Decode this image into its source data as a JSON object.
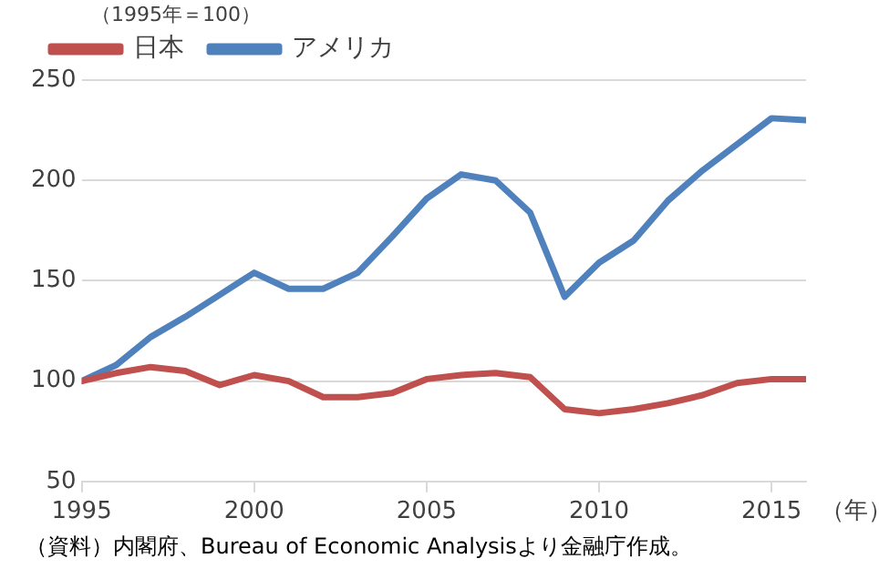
{
  "chart_data": {
    "type": "line",
    "ylabel": "（1995年＝100）",
    "xlabel": "（年）",
    "x": [
      1995,
      1996,
      1997,
      1998,
      1999,
      2000,
      2001,
      2002,
      2003,
      2004,
      2005,
      2006,
      2007,
      2008,
      2009,
      2010,
      2011,
      2012,
      2013,
      2014,
      2015,
      2016
    ],
    "series": [
      {
        "name": "日本",
        "color": "#c0504d",
        "values": [
          100,
          104,
          107,
          105,
          98,
          103,
          100,
          92,
          92,
          94,
          101,
          103,
          104,
          102,
          86,
          84,
          86,
          89,
          93,
          99,
          101,
          101
        ]
      },
      {
        "name": "アメリカ",
        "color": "#4f81bd",
        "values": [
          100,
          108,
          122,
          132,
          143,
          154,
          146,
          146,
          154,
          172,
          191,
          203,
          200,
          184,
          142,
          159,
          170,
          190,
          205,
          218,
          231,
          230
        ]
      }
    ],
    "xlim": [
      1995,
      2016
    ],
    "xticks": [
      1995,
      2000,
      2005,
      2010,
      2015
    ],
    "ylim": [
      50,
      250
    ],
    "yticks": [
      50,
      100,
      150,
      200,
      250
    ],
    "grid": "y",
    "legend": "top left",
    "marker": "none",
    "line_style": "solid",
    "annotations": [
      "（資料）内閣府、Bureau of Economic Analysisより金融庁作成。"
    ]
  }
}
